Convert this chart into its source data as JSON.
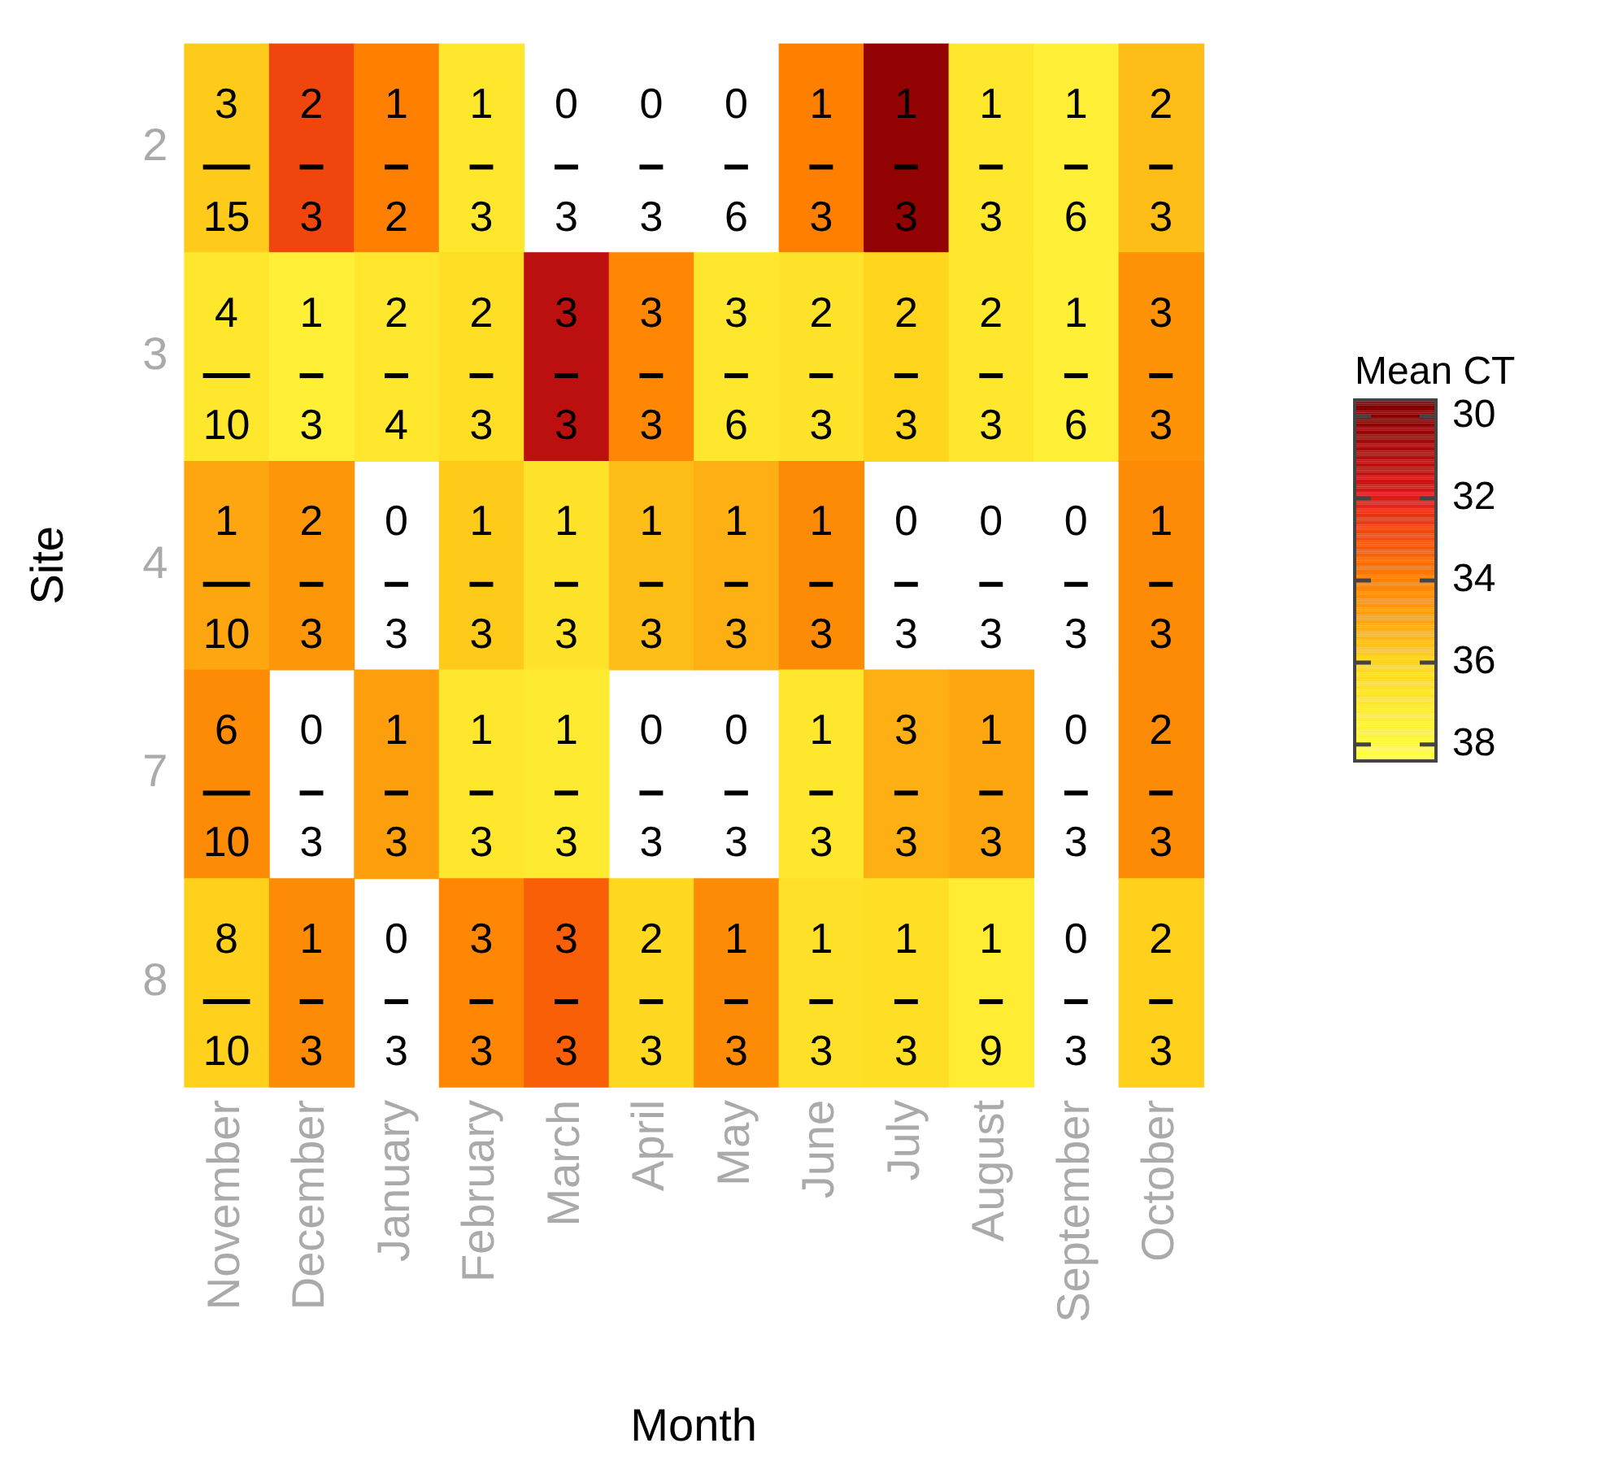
{
  "chart_data": {
    "type": "heatmap",
    "xlabel": "Month",
    "ylabel": "Site",
    "clabel": "Mean CT",
    "categories": [
      "November",
      "December",
      "January",
      "February",
      "March",
      "April",
      "May",
      "June",
      "July",
      "August",
      "September",
      "October"
    ],
    "y_categories": [
      "2",
      "3",
      "4",
      "7",
      "8"
    ],
    "cells": [
      [
        35.8,
        32.8,
        34.0,
        37.0,
        null,
        null,
        null,
        34.0,
        30.2,
        37.0,
        37.5,
        35.5
      ],
      [
        37.0,
        37.5,
        37.0,
        36.5,
        31.2,
        34.2,
        37.0,
        36.8,
        36.0,
        37.0,
        37.5,
        34.5
      ],
      [
        35.0,
        34.6,
        null,
        35.8,
        36.8,
        35.5,
        35.2,
        34.3,
        null,
        null,
        null,
        34.3
      ],
      [
        34.3,
        null,
        34.8,
        37.0,
        37.2,
        null,
        null,
        37.0,
        35.2,
        35.0,
        null,
        34.3
      ],
      [
        35.9,
        34.3,
        null,
        34.2,
        33.3,
        36.2,
        34.3,
        36.6,
        36.5,
        37.3,
        null,
        35.9
      ]
    ],
    "cell_labels": [
      [
        "3\n15",
        "2\n3",
        "1\n2",
        "1\n3",
        "0\n3",
        "0\n3",
        "0\n6",
        "1\n3",
        "1\n3",
        "1\n3",
        "1\n6",
        "2\n3"
      ],
      [
        "4\n10",
        "1\n3",
        "2\n4",
        "2\n3",
        "3\n3",
        "3\n3",
        "3\n6",
        "2\n3",
        "2\n3",
        "2\n3",
        "1\n6",
        "3\n3"
      ],
      [
        "1\n10",
        "2\n3",
        "0\n3",
        "1\n3",
        "1\n3",
        "1\n3",
        "1\n3",
        "1\n3",
        "0\n3",
        "0\n3",
        "0\n3",
        "1\n3"
      ],
      [
        "6\n10",
        "0\n3",
        "1\n3",
        "1\n3",
        "1\n3",
        "0\n3",
        "0\n3",
        "1\n3",
        "3\n3",
        "1\n3",
        "0\n3",
        "2\n3"
      ],
      [
        "8\n10",
        "1\n3",
        "0\n3",
        "3\n3",
        "3\n3",
        "2\n3",
        "1\n3",
        "1\n3",
        "1\n3",
        "1\n9",
        "0\n3",
        "2\n3"
      ]
    ],
    "clim": [
      38.4,
      29.6
    ],
    "cticks": [
      30,
      32,
      34,
      36,
      38
    ],
    "grid": false
  }
}
